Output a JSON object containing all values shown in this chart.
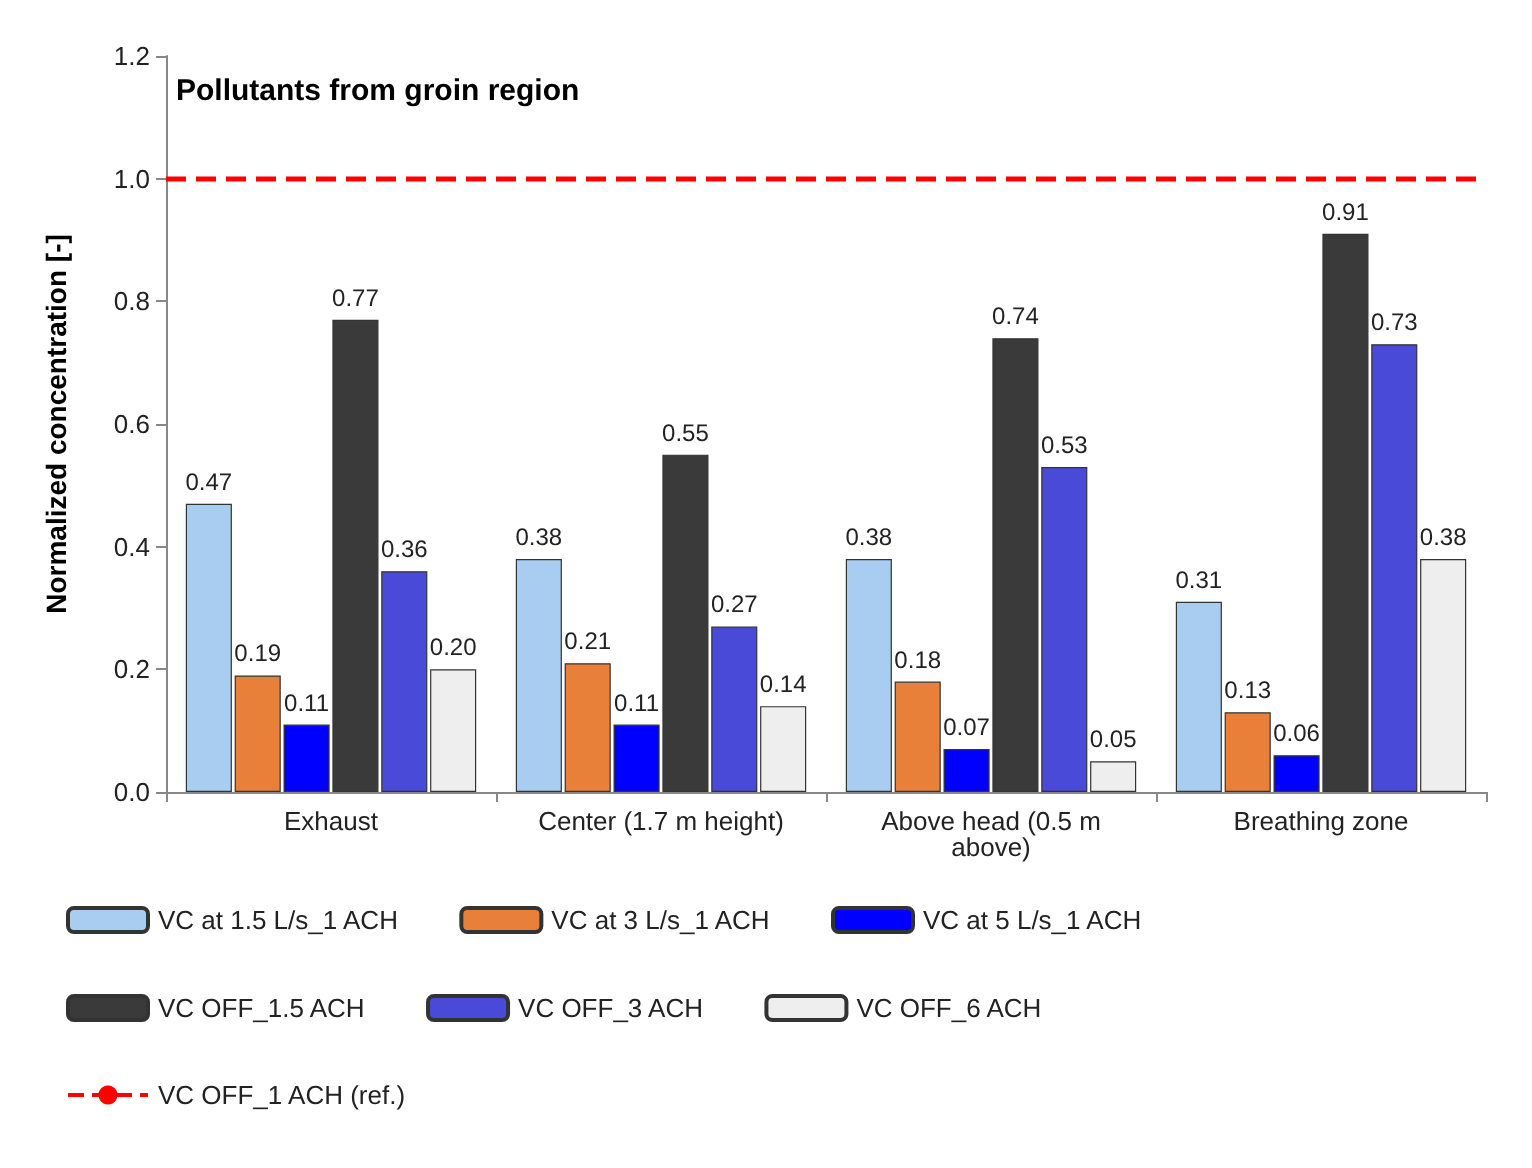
{
  "chart_data": {
    "type": "bar",
    "title": "Pollutants from groin region",
    "ylabel": "Normalized concentration [-]",
    "categories": [
      "Exhaust",
      "Center (1.7 m height)",
      "Above head (0.5 m\nabove)",
      "Breathing zone"
    ],
    "series": [
      {
        "name": "VC at 1.5 L/s_1 ACH",
        "color": "#a9cdf0",
        "values": [
          0.47,
          0.38,
          0.38,
          0.31
        ],
        "value_labels": [
          "0.47",
          "0.38",
          "0.38",
          "0.31"
        ]
      },
      {
        "name": "VC at 3 L/s_1 ACH",
        "color": "#e8803a",
        "values": [
          0.19,
          0.21,
          0.18,
          0.13
        ],
        "value_labels": [
          "0.19",
          "0.21",
          "0.18",
          "0.13"
        ]
      },
      {
        "name": "VC at 5 L/s_1 ACH",
        "color": "#0000ff",
        "values": [
          0.11,
          0.11,
          0.07,
          0.06
        ],
        "value_labels": [
          "0.11",
          "0.11",
          "0.07",
          "0.06"
        ]
      },
      {
        "name": "VC OFF_1.5 ACH",
        "color": "#3a3a3a",
        "values": [
          0.77,
          0.55,
          0.74,
          0.91
        ],
        "value_labels": [
          "0.77",
          "0.55",
          "0.74",
          "0.91"
        ]
      },
      {
        "name": "VC OFF_3 ACH",
        "color": "#4a4ad8",
        "values": [
          0.36,
          0.27,
          0.53,
          0.73
        ],
        "value_labels": [
          "0.36",
          "0.27",
          "0.53",
          "0.73"
        ]
      },
      {
        "name": "VC OFF_6 ACH",
        "color": "#eeeeee",
        "values": [
          0.2,
          0.14,
          0.05,
          0.38
        ],
        "value_labels": [
          "0.20",
          "0.14",
          "0.05",
          "0.38"
        ]
      }
    ],
    "ref_lines": [
      {
        "axis": "y",
        "value": 1.0,
        "label": "VC OFF_1 ACH (ref.)",
        "color": "#ff0000",
        "line_style": "dashed"
      }
    ],
    "ylim": [
      0,
      1.2
    ],
    "yticks": [
      {
        "value": 0,
        "label": "0.0"
      },
      {
        "value": 0.2,
        "label": "0.2"
      },
      {
        "value": 0.4,
        "label": "0.4"
      },
      {
        "value": 0.6,
        "label": "0.6"
      },
      {
        "value": 0.8,
        "label": "0.8"
      },
      {
        "value": 1.0,
        "label": "1.0"
      },
      {
        "value": 1.2,
        "label": "1.2"
      }
    ],
    "grid": false,
    "legend": "bottom"
  }
}
